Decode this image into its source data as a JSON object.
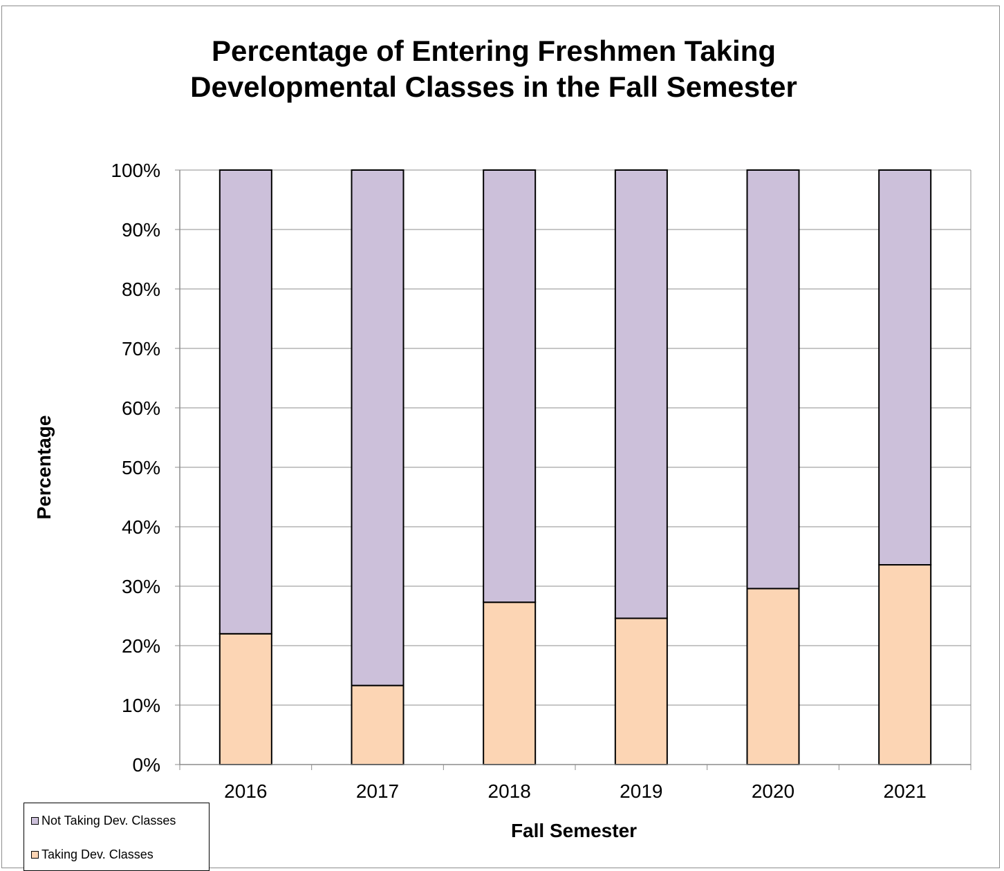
{
  "chart_data": {
    "type": "bar",
    "stacked": true,
    "title_lines": [
      "Percentage of Entering Freshmen Taking",
      "Developmental Classes in the Fall Semester"
    ],
    "xlabel": "Fall Semester",
    "ylabel": "Percentage",
    "categories": [
      "2016",
      "2017",
      "2018",
      "2019",
      "2020",
      "2021"
    ],
    "y_ticks": [
      "0%",
      "10%",
      "20%",
      "30%",
      "40%",
      "50%",
      "60%",
      "70%",
      "80%",
      "90%",
      "100%"
    ],
    "ylim": [
      0,
      100
    ],
    "grid": true,
    "series": [
      {
        "name": "Taking Dev. Classes",
        "values": [
          22.0,
          13.3,
          27.3,
          24.6,
          29.6,
          33.6
        ],
        "color": "#FCD5B4"
      },
      {
        "name": "Not Taking Dev. Classes",
        "values": [
          78.0,
          86.7,
          72.7,
          75.4,
          70.4,
          66.4
        ],
        "color": "#CCC0DA"
      }
    ],
    "legend": {
      "placement": "bottom-left",
      "items": [
        "Not Taking Dev. Classes",
        "Taking Dev. Classes"
      ]
    }
  }
}
